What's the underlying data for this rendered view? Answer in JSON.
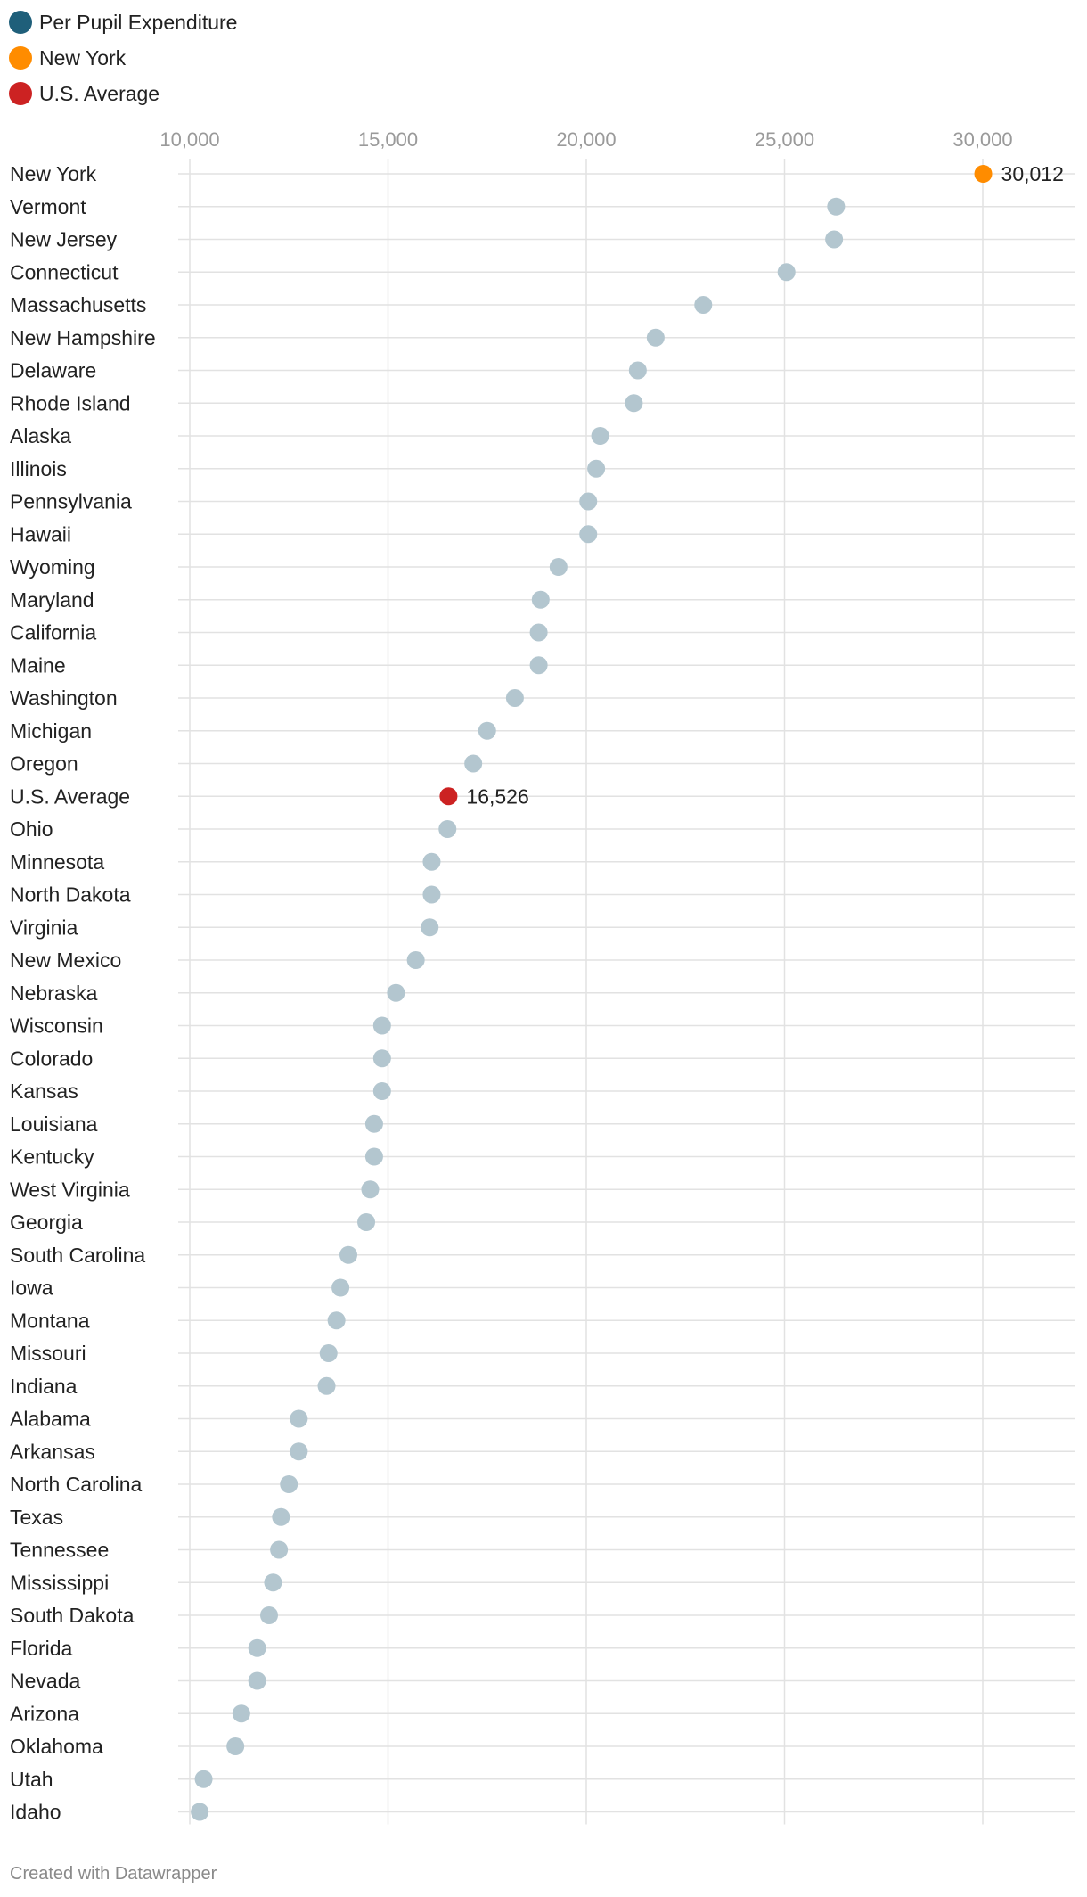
{
  "chart_data": {
    "type": "scatter",
    "orientation": "horizontal-dot-plot",
    "legend": [
      {
        "name": "Per Pupil Expenditure",
        "color": "#1f5f7a"
      },
      {
        "name": "New York",
        "color": "#ff8c00"
      },
      {
        "name": "U.S. Average",
        "color": "#cc2222"
      }
    ],
    "legend_placement": "top-left",
    "x_ticks": [
      10000,
      15000,
      20000,
      25000,
      30000
    ],
    "x_tick_labels": [
      "10,000",
      "15,000",
      "20,000",
      "25,000",
      "30,000"
    ],
    "xlim": [
      9700,
      32300
    ],
    "grid": true,
    "dot_color": "#b3c6cf",
    "points": [
      {
        "label": "New York",
        "value": 30012,
        "highlight": "new-york",
        "value_label": "30,012"
      },
      {
        "label": "Vermont",
        "value": 26300
      },
      {
        "label": "New Jersey",
        "value": 26250
      },
      {
        "label": "Connecticut",
        "value": 25050
      },
      {
        "label": "Massachusetts",
        "value": 22950
      },
      {
        "label": "New Hampshire",
        "value": 21750
      },
      {
        "label": "Delaware",
        "value": 21300
      },
      {
        "label": "Rhode Island",
        "value": 21200
      },
      {
        "label": "Alaska",
        "value": 20350
      },
      {
        "label": "Illinois",
        "value": 20250
      },
      {
        "label": "Pennsylvania",
        "value": 20050
      },
      {
        "label": "Hawaii",
        "value": 20050
      },
      {
        "label": "Wyoming",
        "value": 19300
      },
      {
        "label": "Maryland",
        "value": 18850
      },
      {
        "label": "California",
        "value": 18800
      },
      {
        "label": "Maine",
        "value": 18800
      },
      {
        "label": "Washington",
        "value": 18200
      },
      {
        "label": "Michigan",
        "value": 17500
      },
      {
        "label": "Oregon",
        "value": 17150
      },
      {
        "label": "U.S. Average",
        "value": 16526,
        "highlight": "us-average",
        "value_label": "16,526"
      },
      {
        "label": "Ohio",
        "value": 16500
      },
      {
        "label": "Minnesota",
        "value": 16100
      },
      {
        "label": "North Dakota",
        "value": 16100
      },
      {
        "label": "Virginia",
        "value": 16050
      },
      {
        "label": "New Mexico",
        "value": 15700
      },
      {
        "label": "Nebraska",
        "value": 15200
      },
      {
        "label": "Wisconsin",
        "value": 14850
      },
      {
        "label": "Colorado",
        "value": 14850
      },
      {
        "label": "Kansas",
        "value": 14850
      },
      {
        "label": "Louisiana",
        "value": 14650
      },
      {
        "label": "Kentucky",
        "value": 14650
      },
      {
        "label": "West Virginia",
        "value": 14550
      },
      {
        "label": "Georgia",
        "value": 14450
      },
      {
        "label": "South Carolina",
        "value": 14000
      },
      {
        "label": "Iowa",
        "value": 13800
      },
      {
        "label": "Montana",
        "value": 13700
      },
      {
        "label": "Missouri",
        "value": 13500
      },
      {
        "label": "Indiana",
        "value": 13450
      },
      {
        "label": "Alabama",
        "value": 12750
      },
      {
        "label": "Arkansas",
        "value": 12750
      },
      {
        "label": "North Carolina",
        "value": 12500
      },
      {
        "label": "Texas",
        "value": 12300
      },
      {
        "label": "Tennessee",
        "value": 12250
      },
      {
        "label": "Mississippi",
        "value": 12100
      },
      {
        "label": "South Dakota",
        "value": 12000
      },
      {
        "label": "Florida",
        "value": 11700
      },
      {
        "label": "Nevada",
        "value": 11700
      },
      {
        "label": "Arizona",
        "value": 11300
      },
      {
        "label": "Oklahoma",
        "value": 11150
      },
      {
        "label": "Utah",
        "value": 10350
      },
      {
        "label": "Idaho",
        "value": 10250
      }
    ]
  },
  "footer": {
    "credit": "Created with Datawrapper"
  }
}
